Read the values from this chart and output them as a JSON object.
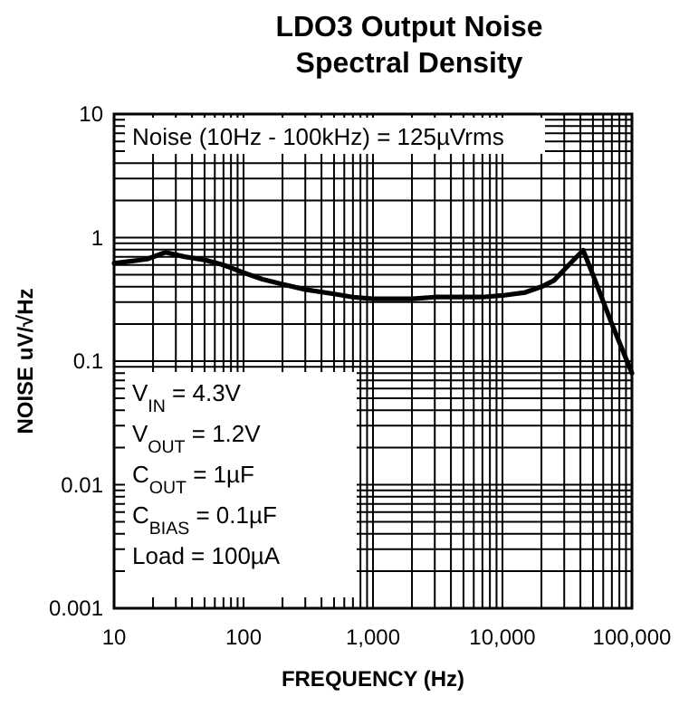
{
  "chart_data": {
    "type": "line",
    "title": "LDO3 Output Noise\nSpectral Density",
    "xlabel": "FREQUENCY (Hz)",
    "ylabel": "NOISE uV/√Hz",
    "log": "xy",
    "grid": true,
    "xlim": [
      10,
      100000
    ],
    "ylim": [
      0.001,
      10
    ],
    "xticks": [
      10,
      100,
      {
        "value": 1000,
        "label": "1,000"
      },
      {
        "value": 10000,
        "label": "10,000"
      },
      {
        "value": 100000,
        "label": "100,000"
      }
    ],
    "yticks": [
      0.001,
      0.01,
      0.1,
      1,
      10
    ],
    "series": [
      {
        "color": "#000000",
        "x": [
          10,
          13,
          18,
          25,
          35,
          50,
          70,
          100,
          140,
          200,
          300,
          500,
          700,
          1000,
          2000,
          3000,
          5000,
          7000,
          10000,
          15000,
          20000,
          25000,
          30000,
          35000,
          42000,
          50000,
          70000,
          100000
        ],
        "values": [
          0.62,
          0.64,
          0.67,
          0.76,
          0.7,
          0.66,
          0.6,
          0.52,
          0.46,
          0.42,
          0.38,
          0.35,
          0.33,
          0.32,
          0.32,
          0.33,
          0.33,
          0.33,
          0.34,
          0.36,
          0.4,
          0.45,
          0.55,
          0.65,
          0.79,
          0.5,
          0.2,
          0.08
        ]
      }
    ],
    "annotations": [
      "Noise (10Hz - 100kHz) = 125µVrms",
      "V$_{IN}$ = 4.3V",
      "V$_{OUT}$ = 1.2V",
      "C$_{OUT}$ = 1µF",
      "C$_{BIAS}$ = 0.1µF",
      "Load = 100µA"
    ]
  }
}
